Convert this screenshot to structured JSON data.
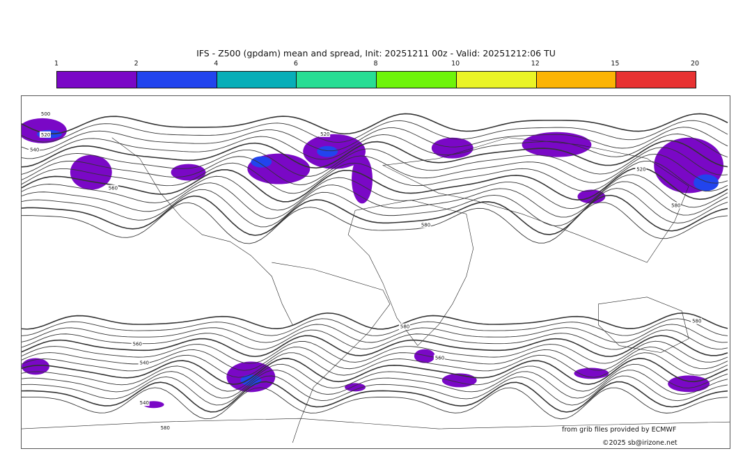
{
  "title": "IFS - Z500 (gpdam) mean and spread, Init: 20251211 00z - Valid: 20251212:06 TU",
  "colorbar": {
    "ticks": [
      "1",
      "2",
      "4",
      "6",
      "8",
      "10",
      "12",
      "15",
      "20"
    ],
    "colors": [
      "#7a08c6",
      "#2244ee",
      "#08aeb8",
      "#28dd94",
      "#6ef40a",
      "#eaf426",
      "#fcb404",
      "#e83232"
    ]
  },
  "map": {
    "contour_labels": [
      "500",
      "520",
      "540",
      "560",
      "580",
      "580",
      "580",
      "580",
      "560",
      "540",
      "520",
      "520",
      "540",
      "560",
      "580"
    ],
    "spread_color": "#7a08c6",
    "spread_high_color": "#2244ee"
  },
  "footer": {
    "source": "from grib files provided by ECMWF",
    "copyright": "©2025 sb@irizone.net"
  }
}
